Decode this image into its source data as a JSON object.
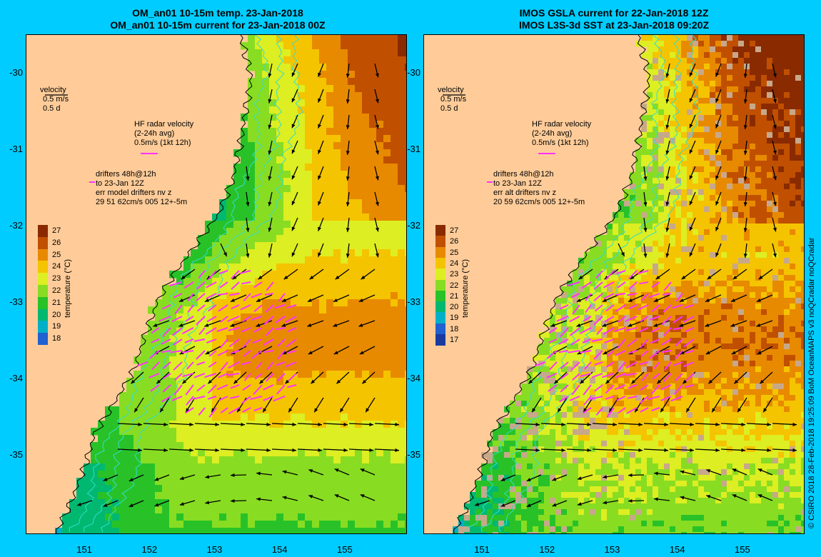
{
  "panels": [
    {
      "id": "left",
      "title_line1": "OM_an01 10-15m temp. 23-Jan-2018",
      "title_line2": "OM_an01 10-15m current for 23-Jan-2018 00Z",
      "velocity_legend": [
        "velocity",
        "0.5 m/s",
        "0.5 d"
      ],
      "hf_legend": [
        "HF radar velocity",
        "(2-24h avg)",
        "0.5m/s (1kt 12h)"
      ],
      "drifter_legend": [
        "drifters 48h@12h",
        "to 23-Jan 12Z",
        "err model drifters nv z",
        "29 51 62cm/s 005 12+-5m"
      ],
      "colorbar_ticks": [
        "27",
        "26",
        "25",
        "24",
        "23",
        "22",
        "21",
        "20",
        "19",
        "18"
      ],
      "colorbar_label": "temperature (°C)",
      "has_missing_data": false
    },
    {
      "id": "right",
      "title_line1": "IMOS GSLA current for 22-Jan-2018 12Z",
      "title_line2": "IMOS L3S-3d SST at 23-Jan-2018 09:20Z",
      "velocity_legend": [
        "velocity",
        "0.5 m/s",
        "0.5 d"
      ],
      "hf_legend": [
        "HF radar velocity",
        "(2-24h avg)",
        "0.5m/s (1kt 12h)"
      ],
      "drifter_legend": [
        "drifters 48h@12h",
        "to 23-Jan 12Z",
        "err alt drifters nv z",
        "20 59 62cm/s 005 12+-5m"
      ],
      "colorbar_ticks": [
        "27",
        "26",
        "25",
        "24",
        "23",
        "22",
        "21",
        "20",
        "19",
        "18",
        "17"
      ],
      "colorbar_label": "temperature (°C)",
      "has_missing_data": true
    }
  ],
  "lat_ticks": [
    "-30",
    "-31",
    "-32",
    "-33",
    "-34",
    "-35"
  ],
  "lon_ticks": [
    "151",
    "152",
    "153",
    "154",
    "155"
  ],
  "credit": "© CSIRO 2018   28-Feb-2018 19:25:09 BoM OceanMAPS v3 noQCradar noQCradar",
  "colors": {
    "background": "#00ccff",
    "land": "#ffcc99",
    "missing": "#c8a88a",
    "hf_radar": "#ff33ff",
    "isobath": "#33ddcc",
    "coast": "#000000"
  }
}
